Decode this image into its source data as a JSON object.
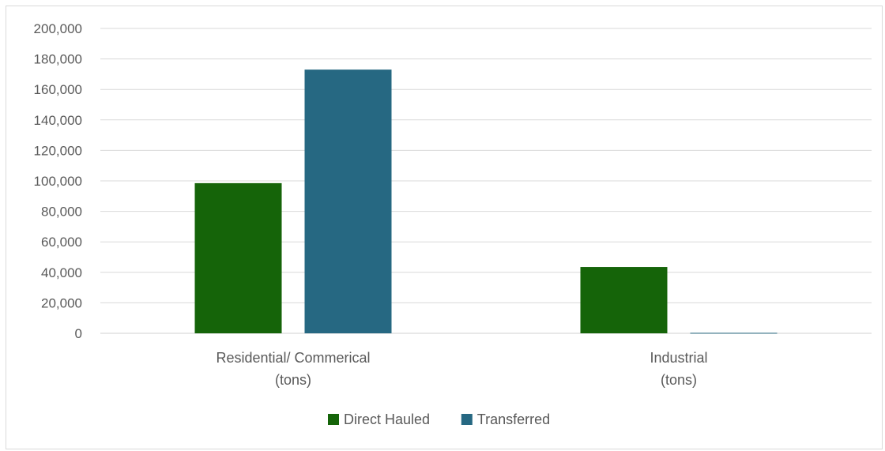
{
  "chart_data": {
    "type": "bar",
    "title": "",
    "xlabel": "",
    "ylabel": "",
    "ylim": [
      0,
      200000
    ],
    "ytick_step": 20000,
    "ytick_labels": [
      "0",
      "20,000",
      "40,000",
      "60,000",
      "80,000",
      "100,000",
      "120,000",
      "140,000",
      "160,000",
      "180,000",
      "200,000"
    ],
    "categories": [
      [
        "Residential/ Commerical",
        "(tons)"
      ],
      [
        "Industrial",
        "(tons)"
      ]
    ],
    "series": [
      {
        "name": "Direct Hauled",
        "color": "#156409",
        "values": [
          98500,
          43500
        ]
      },
      {
        "name": "Transferred",
        "color": "#266882",
        "values": [
          173000,
          300
        ]
      }
    ],
    "grid": true,
    "legend_position": "bottom",
    "gridline_color": "#d9d9d9",
    "axis_color": "#d9d9d9"
  }
}
